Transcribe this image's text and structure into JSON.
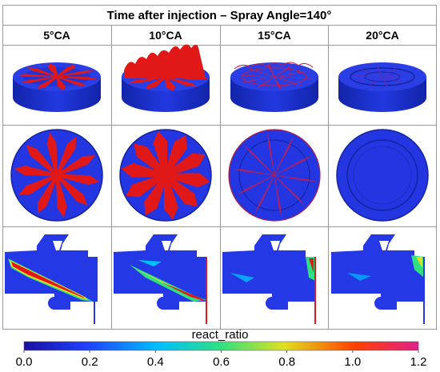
{
  "title": "Time after injection – Spray Angle=140°",
  "columns": [
    "5°CA",
    "10°CA",
    "15°CA",
    "20°CA"
  ],
  "row_views": [
    "perspective",
    "top",
    "cross-section"
  ],
  "colorbar": {
    "label": "react_ratio",
    "ticks": [
      "0.0",
      "0.2",
      "0.4",
      "0.6",
      "0.8",
      "1.0",
      "1.2"
    ],
    "min": 0.0,
    "max": 1.2,
    "colormap": [
      "#1a10a0",
      "#2040ff",
      "#00bfff",
      "#30e080",
      "#e0e020",
      "#ff4000",
      "#e0208a"
    ]
  },
  "colors": {
    "piston_blue": "#1f2fd8",
    "spray_red": "#e01818",
    "border": "#9a9a9a"
  },
  "spray": {
    "nozzle_holes": 10,
    "spray_angle_deg": 140
  }
}
